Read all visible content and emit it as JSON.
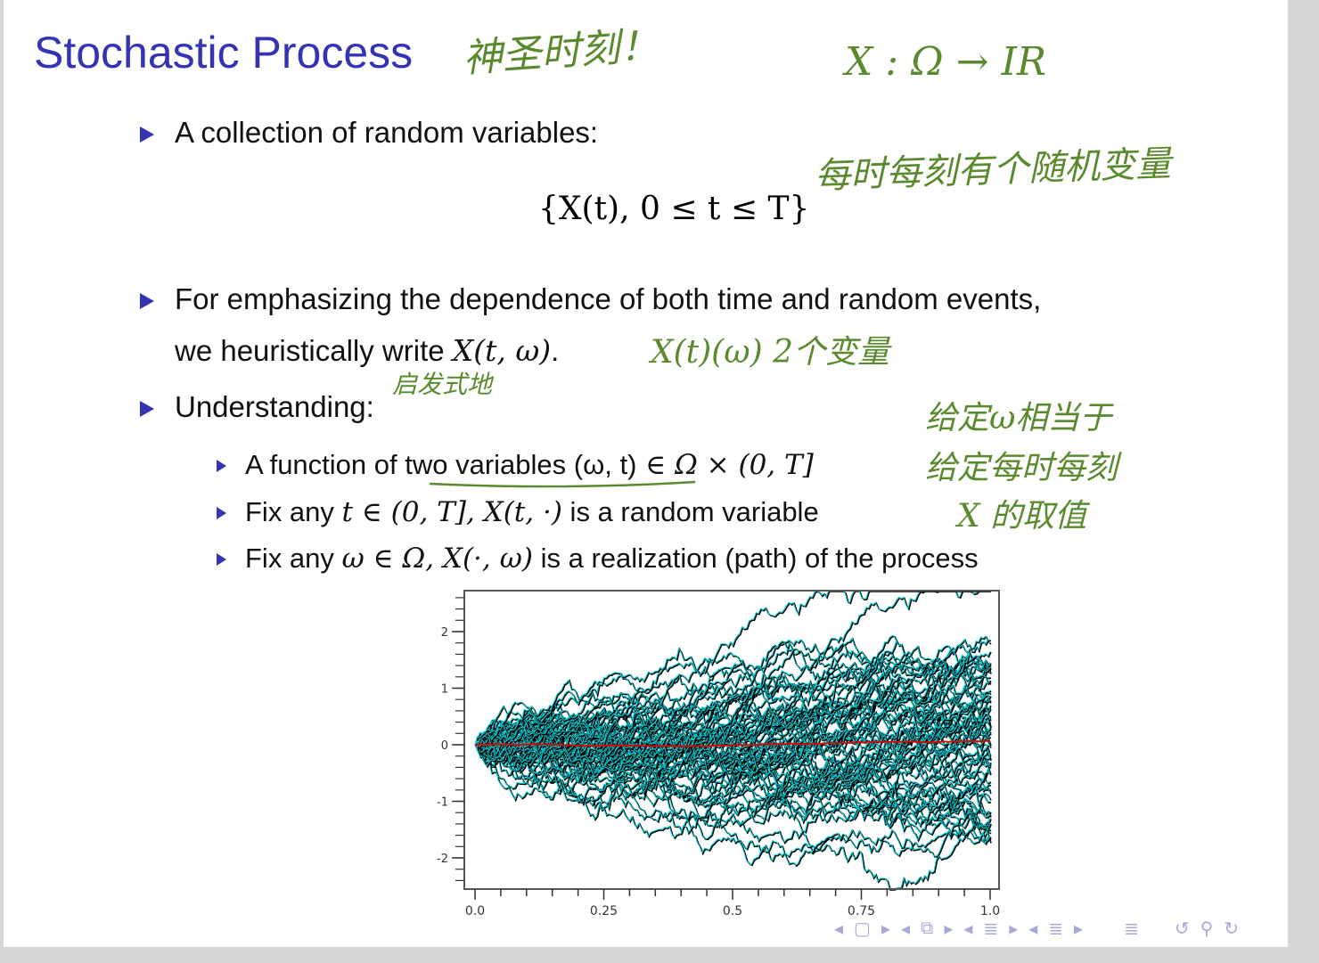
{
  "slide": {
    "title": "Stochastic Process",
    "bullets": [
      {
        "text": "A collection of random variables:"
      },
      {
        "formula": "{X(t), 0 ≤ t ≤ T}"
      },
      {
        "line1": "For emphasizing the dependence of both time and random events,",
        "line2_prefix": "we heuristically write ",
        "line2_math": "X(t, ω)",
        "line2_suffix": "."
      },
      {
        "text": "Understanding:"
      }
    ],
    "sub_bullets": [
      {
        "prefix": "A function of ",
        "underlined": "two variables (ω, t)",
        "math": " ∈ Ω × (0, T]"
      },
      {
        "prefix": "Fix any ",
        "math": "t ∈ (0, T], X(t, ·)",
        "suffix": " is a random variable"
      },
      {
        "prefix": "Fix any ",
        "math": "ω ∈ Ω, X(·, ω)",
        "suffix": " is a realization (path) of the process"
      }
    ]
  },
  "annotations": {
    "title_note": "神圣时刻！",
    "map_note": "X : Ω → IR",
    "collection_note": "每时每刻有个随机变量",
    "notation_note": "X(t)(ω)  2个变量",
    "heuristic_note": "启发式地",
    "note_line1": "给定ω相当于",
    "note_line2": "给定每时每刻",
    "note_line3": "X 的取值",
    "color": "#5a8a2e"
  },
  "figure": {
    "x_ticks": [
      "0.0",
      "0.25",
      "0.5",
      "0.75",
      "1.0"
    ],
    "y_ticks": [
      "2",
      "1",
      "0",
      "-1",
      "-2"
    ],
    "xlim": [
      0,
      1
    ],
    "ylim": [
      -2.5,
      2.8
    ],
    "paths_color": "#00d0d8",
    "paths_shadow_color": "#000000",
    "mean_color": "#dd0000"
  },
  "nav": {
    "icons": [
      "frame-prev",
      "frame",
      "frame-next",
      "subsection-prev",
      "subsection",
      "subsection-next",
      "section-prev",
      "section",
      "section-next",
      "doc-prev",
      "doc",
      "doc-next",
      "toc",
      "back",
      "search",
      "forward"
    ],
    "color": "#a8a8d8"
  }
}
